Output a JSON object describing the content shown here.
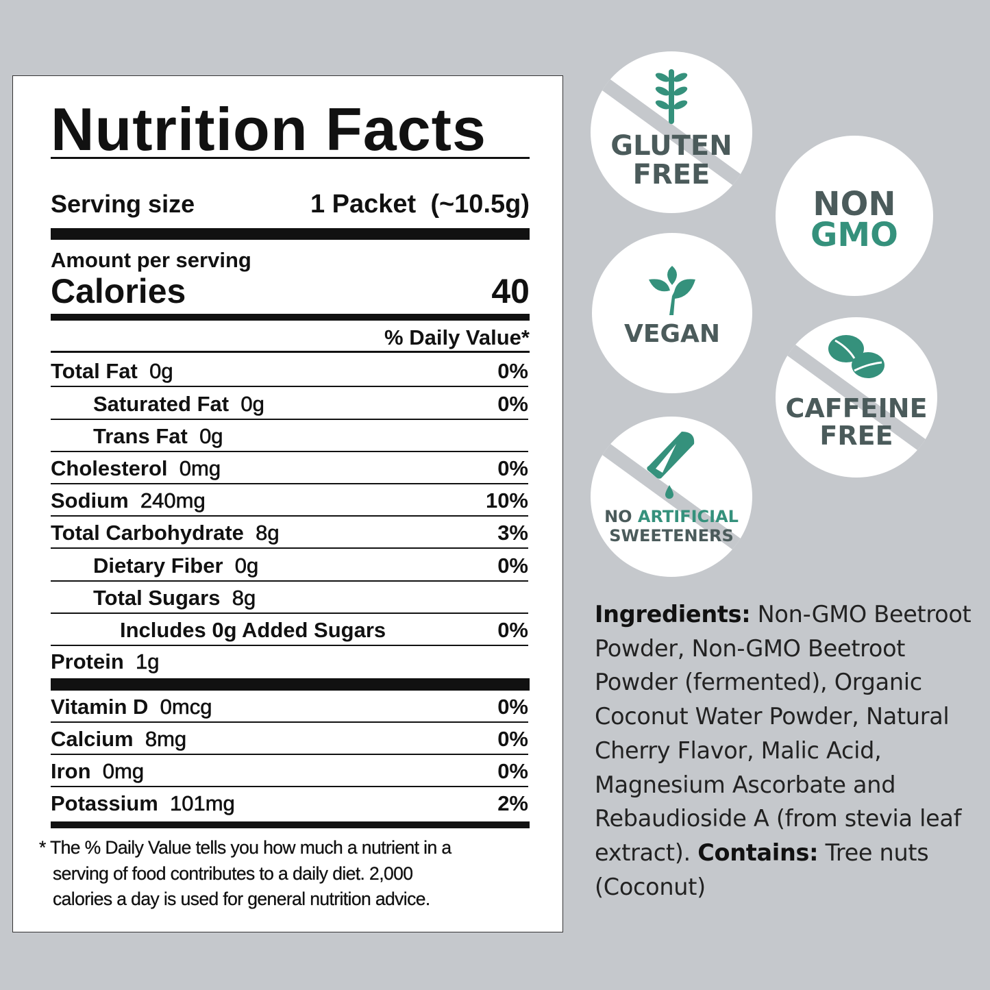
{
  "label": {
    "title": "Nutrition Facts",
    "serving_size_label": "Serving size",
    "serving_size_value": "1 Packet  (~10.5g)",
    "amount_per_serving": "Amount per serving",
    "calories_label": "Calories",
    "calories_value": "40",
    "daily_value_header": "% Daily Value*",
    "nutrients": [
      {
        "name": "Total Fat",
        "amount": "0g",
        "dv": "0%"
      },
      {
        "name": "Saturated Fat",
        "amount": "0g",
        "dv": "0%"
      },
      {
        "name": "Trans Fat",
        "amount": "0g",
        "dv": ""
      },
      {
        "name": "Cholesterol",
        "amount": "0mg",
        "dv": "0%"
      },
      {
        "name": "Sodium",
        "amount": "240mg",
        "dv": "10%"
      },
      {
        "name": "Total Carbohydrate",
        "amount": "8g",
        "dv": "3%"
      },
      {
        "name": "Dietary Fiber",
        "amount": "0g",
        "dv": "0%"
      },
      {
        "name": "Total Sugars",
        "amount": "8g",
        "dv": ""
      },
      {
        "name": "Includes 0g Added Sugars",
        "amount": "",
        "dv": "0%"
      },
      {
        "name": "Protein",
        "amount": "1g",
        "dv": ""
      }
    ],
    "vitamins": [
      {
        "name": "Vitamin D",
        "amount": "0mcg",
        "dv": "0%"
      },
      {
        "name": "Calcium",
        "amount": "8mg",
        "dv": "0%"
      },
      {
        "name": "Iron",
        "amount": "0mg",
        "dv": "0%"
      },
      {
        "name": "Potassium",
        "amount": "101mg",
        "dv": "2%"
      }
    ],
    "footnote": [
      "* The % Daily Value tells you how much a nutrient in a",
      "serving of food contributes to a daily diet. 2,000",
      "calories a day is used for general nutrition advice."
    ]
  },
  "badges": {
    "gluten_free": [
      "GLUTEN",
      "FREE"
    ],
    "non_gmo": [
      "NON",
      "GMO"
    ],
    "vegan": "VEGAN",
    "caffeine_free": [
      "CAFFEINE",
      "FREE"
    ],
    "no_artificial": [
      "NO",
      "ARTIFICIAL",
      "SWEETENERS"
    ]
  },
  "ingredients": {
    "label": "Ingredients:",
    "text": " Non-GMO Beetroot Powder, Non-GMO Beetroot Powder (fermented), Organic Coconut Water Powder, Natural Cherry Flavor, Malic Acid, Magnesium Ascorbate and Rebaudioside A (from stevia leaf extract). ",
    "contains_label": "Contains:",
    "contains_text": " Tree nuts (Coconut)"
  },
  "colors": {
    "background": "#c5c8cc",
    "teal": "#35917c",
    "dark_gray": "#4b5b5b"
  }
}
